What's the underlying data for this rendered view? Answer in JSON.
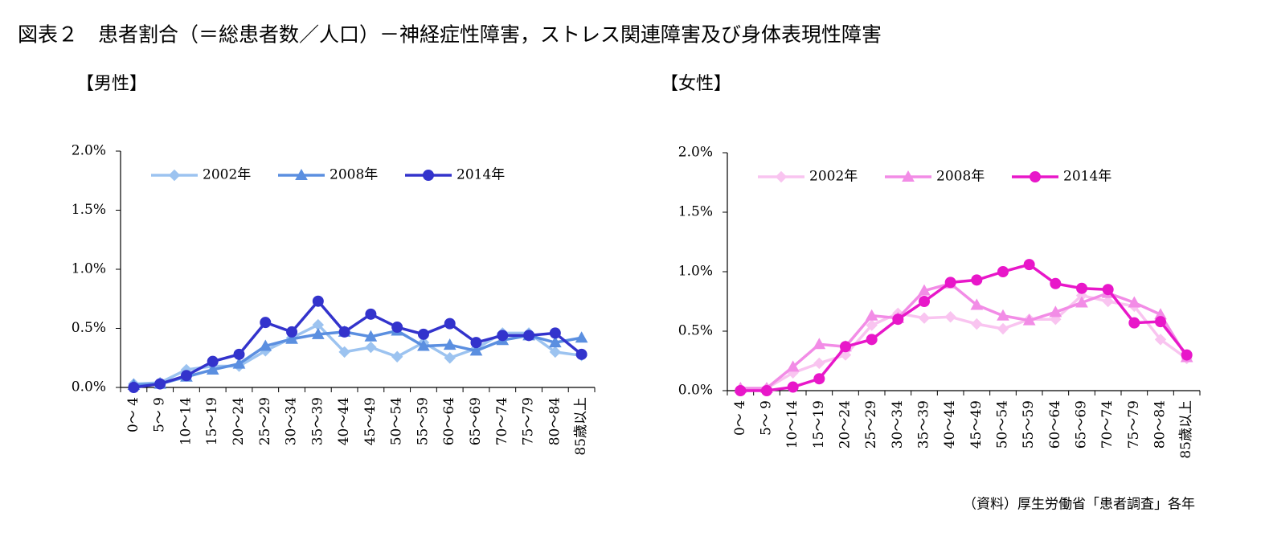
{
  "title": "図表２　患者割合（＝総患者数／人口）－神経症性障害，ストレス関連障害及び身体表現性障害",
  "source": "（資料）厚生労働省「患者調査」各年",
  "chart_data": [
    {
      "type": "line",
      "subtitle": "【男性】",
      "categories": [
        "0～ 4",
        "5～ 9",
        "10～14",
        "15～19",
        "20～24",
        "25～29",
        "30～34",
        "35～39",
        "40～44",
        "45～49",
        "50～54",
        "55～59",
        "60～64",
        "65～69",
        "70～74",
        "75～79",
        "80～84",
        "85歳以上"
      ],
      "ylim": [
        0,
        2.0
      ],
      "yticks": [
        {
          "value": 0,
          "label": "0.0%"
        },
        {
          "value": 0.5,
          "label": "0.5%"
        },
        {
          "value": 1.0,
          "label": "1.0%"
        },
        {
          "value": 1.5,
          "label": "1.5%"
        },
        {
          "value": 2.0,
          "label": "2.0%"
        }
      ],
      "legend": "top-left",
      "series": [
        {
          "name": "2002年",
          "color": "#9cc3f0",
          "marker": "diamond",
          "values": [
            0.03,
            0.04,
            0.15,
            0.18,
            0.18,
            0.31,
            0.42,
            0.53,
            0.3,
            0.34,
            0.26,
            0.38,
            0.25,
            0.33,
            0.46,
            0.46,
            0.3,
            0.27
          ]
        },
        {
          "name": "2008年",
          "color": "#5b8fe0",
          "marker": "triangle",
          "values": [
            0.02,
            0.03,
            0.09,
            0.15,
            0.2,
            0.35,
            0.41,
            0.45,
            0.47,
            0.43,
            0.48,
            0.35,
            0.36,
            0.31,
            0.4,
            0.44,
            0.38,
            0.42
          ]
        },
        {
          "name": "2014年",
          "color": "#3333cc",
          "marker": "circle",
          "values": [
            0.0,
            0.03,
            0.1,
            0.22,
            0.28,
            0.55,
            0.47,
            0.73,
            0.47,
            0.62,
            0.51,
            0.45,
            0.54,
            0.38,
            0.44,
            0.44,
            0.46,
            0.28
          ]
        }
      ]
    },
    {
      "type": "line",
      "subtitle": "【女性】",
      "categories": [
        "0～ 4",
        "5～ 9",
        "10～14",
        "15～19",
        "20～24",
        "25～29",
        "30～34",
        "35～39",
        "40～44",
        "45～49",
        "50～54",
        "55～59",
        "60～64",
        "65～69",
        "70～74",
        "75～79",
        "80～84",
        "85歳以上"
      ],
      "ylim": [
        0,
        2.0
      ],
      "yticks": [
        {
          "value": 0,
          "label": "0.0%"
        },
        {
          "value": 0.5,
          "label": "0.5%"
        },
        {
          "value": 1.0,
          "label": "1.0%"
        },
        {
          "value": 1.5,
          "label": "1.5%"
        },
        {
          "value": 2.0,
          "label": "2.0%"
        }
      ],
      "legend": "top-left",
      "series": [
        {
          "name": "2002年",
          "color": "#f9c4f0",
          "marker": "diamond",
          "values": [
            0.01,
            0.02,
            0.15,
            0.23,
            0.3,
            0.55,
            0.65,
            0.61,
            0.62,
            0.56,
            0.52,
            0.6,
            0.6,
            0.8,
            0.75,
            0.71,
            0.43,
            0.27
          ]
        },
        {
          "name": "2008年",
          "color": "#f28ce6",
          "marker": "triangle",
          "values": [
            0.02,
            0.02,
            0.2,
            0.39,
            0.37,
            0.63,
            0.61,
            0.84,
            0.9,
            0.72,
            0.63,
            0.59,
            0.66,
            0.74,
            0.82,
            0.74,
            0.64,
            0.28
          ]
        },
        {
          "name": "2014年",
          "color": "#e817c9",
          "marker": "circle",
          "values": [
            0.0,
            0.0,
            0.03,
            0.1,
            0.37,
            0.43,
            0.6,
            0.75,
            0.91,
            0.93,
            1.0,
            1.06,
            0.9,
            0.86,
            0.85,
            0.57,
            0.58,
            0.3
          ]
        }
      ]
    }
  ]
}
